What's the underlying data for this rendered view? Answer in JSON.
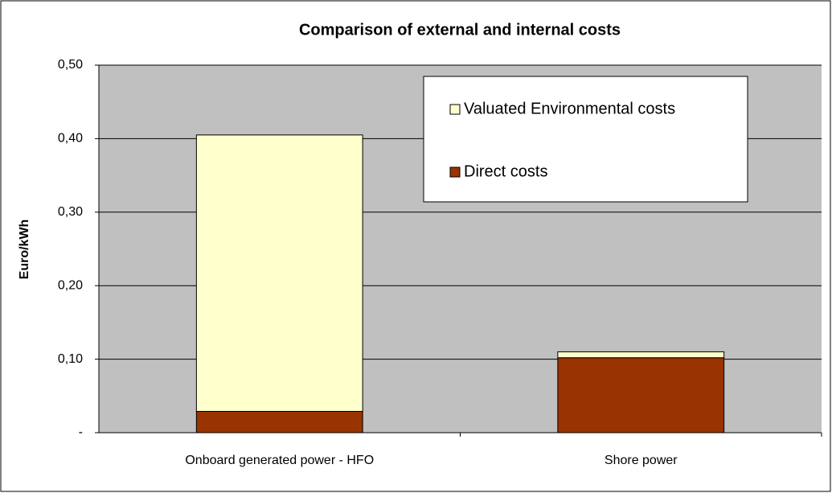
{
  "chart_data": {
    "type": "stacked-bar",
    "title": "Comparison of external and internal costs",
    "y_label": "Euro/kWh",
    "categories": [
      "Onboard generated power - HFO",
      "Shore power"
    ],
    "series": [
      {
        "name": "Direct costs",
        "color": "#993300",
        "values": [
          0.029,
          0.102
        ]
      },
      {
        "name": "Valuated Environmental costs",
        "color": "#FFFFCC",
        "values": [
          0.376,
          0.008
        ]
      }
    ],
    "ylim": [
      0,
      0.5
    ],
    "yticks": [
      {
        "value": 0,
        "label": "-"
      },
      {
        "value": 0.1,
        "label": "0,10"
      },
      {
        "value": 0.2,
        "label": "0,20"
      },
      {
        "value": 0.3,
        "label": "0,30"
      },
      {
        "value": 0.4,
        "label": "0,40"
      },
      {
        "value": 0.5,
        "label": "0,50"
      }
    ],
    "grid": true,
    "plot_background": "#C0C0C0",
    "legend": "upper right"
  }
}
